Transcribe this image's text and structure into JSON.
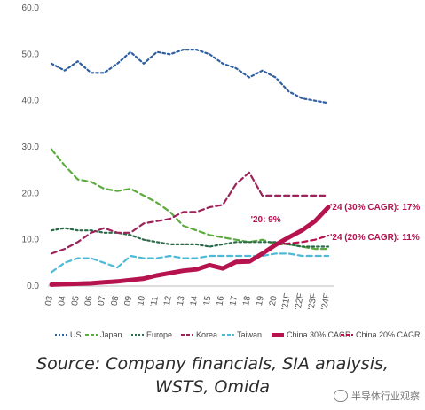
{
  "chart_data": {
    "type": "line",
    "categories": [
      "'03",
      "'04",
      "'05",
      "'06",
      "'07",
      "'08",
      "'09",
      "'10",
      "'11",
      "'12",
      "'13",
      "'14",
      "'15",
      "'16",
      "'17",
      "'18",
      "'19",
      "'20",
      "'21F",
      "'22F",
      "'23F",
      "'24F"
    ],
    "yticks": [
      "0.0",
      "10.0",
      "20.0",
      "30.0",
      "40.0",
      "50.0",
      "60.0"
    ],
    "ylim": [
      0,
      60
    ],
    "series": [
      {
        "name": "US",
        "color": "#2f5fa0",
        "dash": "dot",
        "values": [
          48,
          46.5,
          48.5,
          46,
          46,
          48,
          50.5,
          48,
          50.5,
          50,
          51,
          51,
          50,
          48,
          47,
          45,
          46.5,
          45,
          42,
          40.5,
          40,
          39.5
        ]
      },
      {
        "name": "Japan",
        "color": "#5cab3e",
        "dash": "dash",
        "values": [
          29.5,
          26,
          23,
          22.5,
          21,
          20.5,
          21,
          19.5,
          18,
          16,
          13,
          12,
          11,
          10.5,
          10,
          9.5,
          10,
          9,
          9,
          8.5,
          8,
          8
        ]
      },
      {
        "name": "Europe",
        "color": "#2c6b4a",
        "dash": "dot",
        "values": [
          12,
          12.5,
          12,
          12,
          11.5,
          11.5,
          11,
          10,
          9.5,
          9,
          9,
          9,
          8.5,
          9,
          9.5,
          9.5,
          9.5,
          9.5,
          9,
          8.5,
          8.5,
          8.5
        ]
      },
      {
        "name": "Korea",
        "color": "#9c2359",
        "dash": "dash",
        "values": [
          7,
          8,
          9.5,
          11.5,
          12.5,
          11.5,
          11.5,
          13.5,
          14,
          14.5,
          16,
          16,
          17,
          17.5,
          22,
          24.5,
          19.5,
          19.5,
          19.5,
          19.5,
          19.5,
          19.5
        ]
      },
      {
        "name": "Taiwan",
        "color": "#4fb9d8",
        "dash": "dash",
        "values": [
          3,
          5,
          6,
          6,
          5,
          4,
          6.5,
          6,
          6,
          6.5,
          6,
          6,
          6.5,
          6.5,
          6.5,
          6.5,
          6.5,
          7,
          7,
          6.5,
          6.5,
          6.5
        ]
      },
      {
        "name": "China 30% CAGR",
        "color": "#b5124e",
        "dash": "solid",
        "values": [
          0.3,
          0.4,
          0.5,
          0.6,
          0.8,
          1,
          1.3,
          1.6,
          2.3,
          2.8,
          3.3,
          3.6,
          4.5,
          3.8,
          5.2,
          5.3,
          7,
          8.9,
          10.5,
          12,
          14,
          17
        ]
      },
      {
        "name": "China 20% CAGR",
        "color": "#b5124e",
        "dash": "dash",
        "values": [
          null,
          null,
          null,
          null,
          null,
          null,
          null,
          null,
          null,
          null,
          null,
          null,
          null,
          null,
          null,
          null,
          null,
          8.9,
          9.2,
          9.5,
          10,
          10.9
        ]
      }
    ],
    "annotations": [
      {
        "text": "'20: 9%",
        "x_index": 17,
        "y": 13
      },
      {
        "text": "'24 (30% CAGR): 17%",
        "x_index": 21,
        "y": 17
      },
      {
        "text": "'24 (20% CAGR): 11%",
        "x_index": 21,
        "y": 10.5
      }
    ],
    "legend": [
      "US",
      "Japan",
      "Europe",
      "Korea",
      "Taiwan",
      "China 30% CAGR",
      "China 20% CAGR"
    ]
  },
  "source_line1": "Source: Company financials, SIA analysis,",
  "source_line2": "WSTS, Omida",
  "watermark": "半导体行业观察"
}
